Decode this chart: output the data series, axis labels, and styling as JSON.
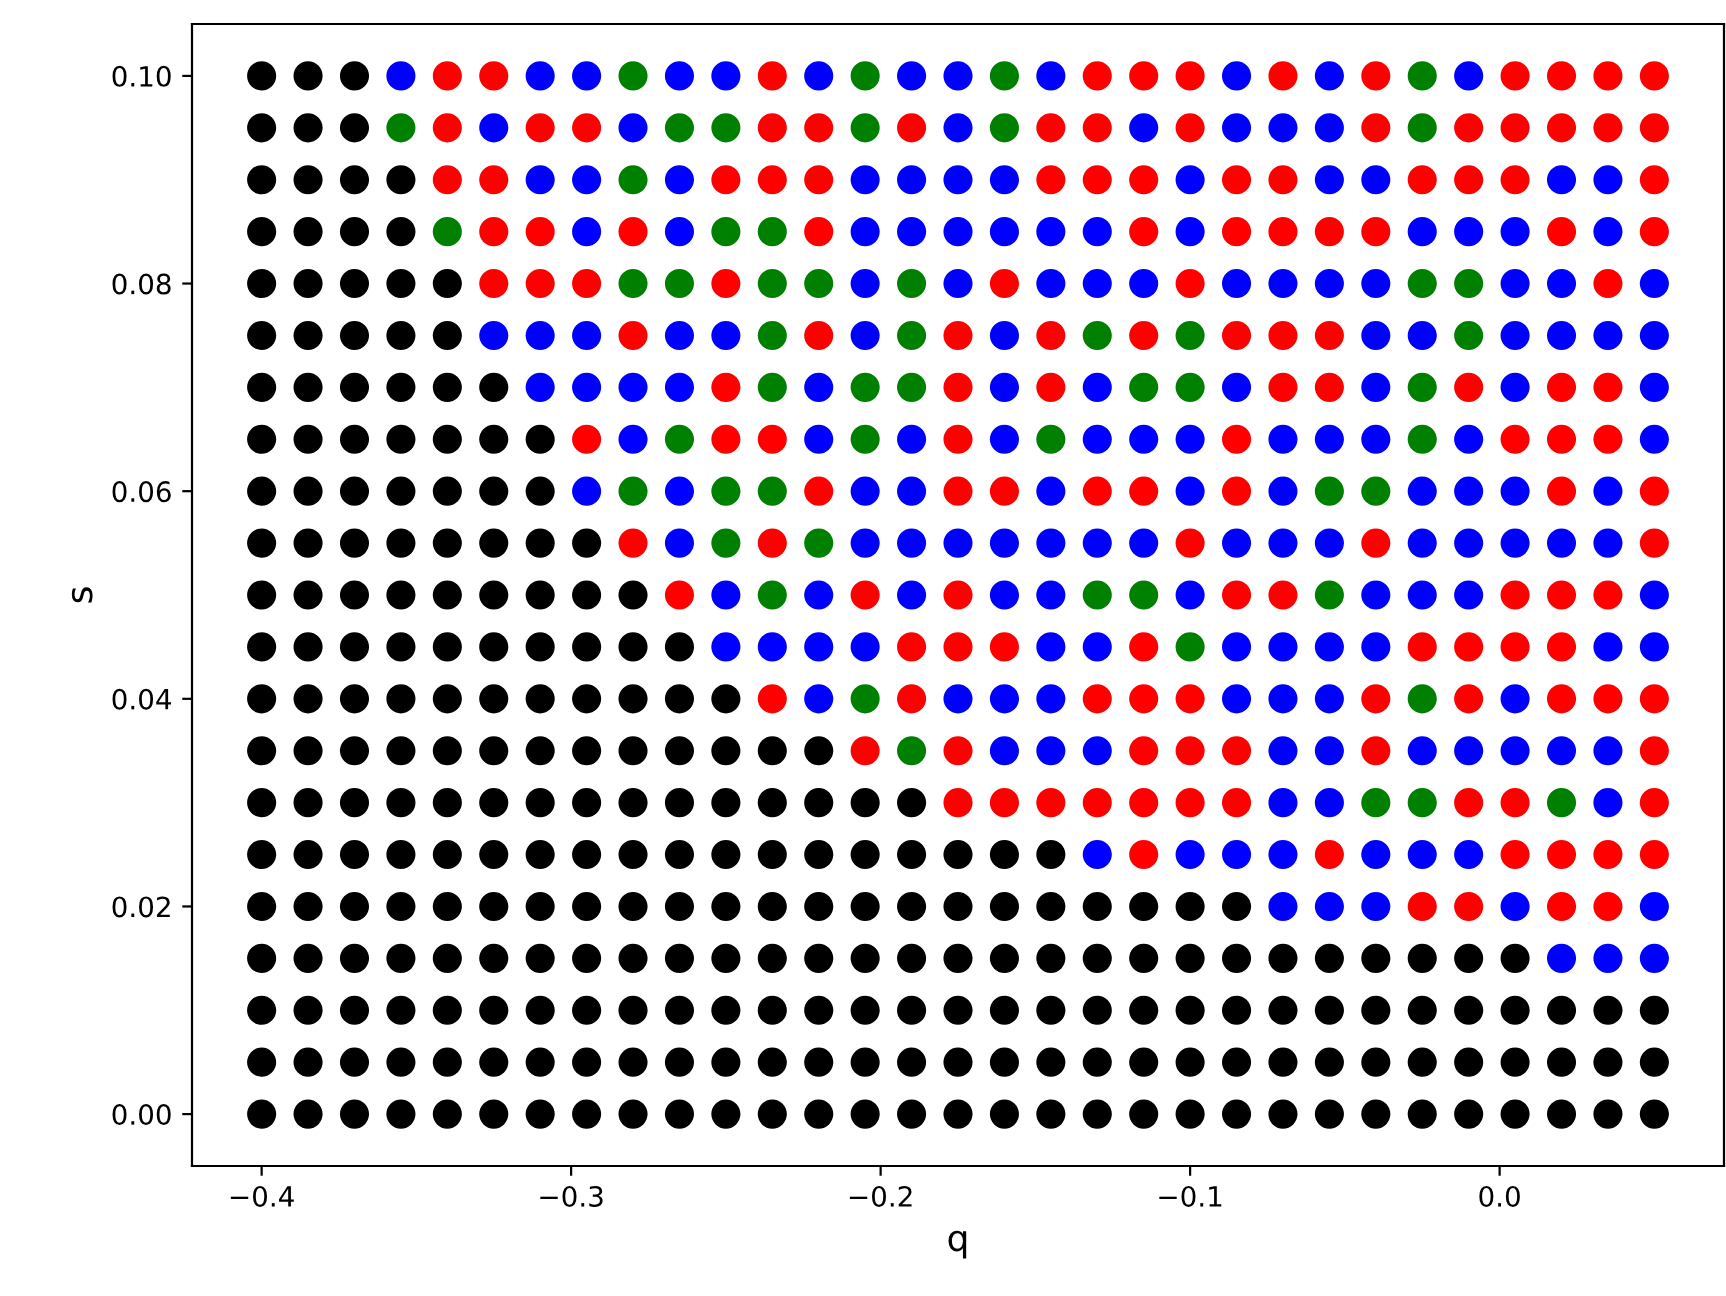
{
  "chart_data": {
    "type": "scatter",
    "xlabel": "q",
    "ylabel": "s",
    "marker": "circle",
    "xlim": [
      -0.4225,
      0.0725
    ],
    "ylim": [
      -0.005,
      0.105
    ],
    "xticks": [
      {
        "value": -0.4,
        "label": "−0.4"
      },
      {
        "value": -0.3,
        "label": "−0.3"
      },
      {
        "value": -0.2,
        "label": "−0.2"
      },
      {
        "value": -0.1,
        "label": "−0.1"
      },
      {
        "value": 0.0,
        "label": "0.0"
      }
    ],
    "yticks": [
      {
        "value": 0.0,
        "label": "0.00"
      },
      {
        "value": 0.02,
        "label": "0.02"
      },
      {
        "value": 0.04,
        "label": "0.04"
      },
      {
        "value": 0.06,
        "label": "0.06"
      },
      {
        "value": 0.08,
        "label": "0.08"
      },
      {
        "value": 0.1,
        "label": "0.10"
      }
    ],
    "x": [
      -0.4,
      -0.385,
      -0.37,
      -0.355,
      -0.34,
      -0.325,
      -0.31,
      -0.295,
      -0.28,
      -0.265,
      -0.25,
      -0.235,
      -0.22,
      -0.205,
      -0.19,
      -0.175,
      -0.16,
      -0.145,
      -0.13,
      -0.115,
      -0.1,
      -0.085,
      -0.07,
      -0.055,
      -0.04,
      -0.025,
      -0.01,
      0.005,
      0.02,
      0.035,
      0.05
    ],
    "series": [
      {
        "values": [
          0.1,
          0.1,
          0.1,
          0.1,
          0.1,
          0.1,
          0.1,
          0.1,
          0.1,
          0.1,
          0.1,
          0.1,
          0.1,
          0.1,
          0.1,
          0.1,
          0.1,
          0.1,
          0.1,
          0.1,
          0.1,
          0.1,
          0.1,
          0.1,
          0.1,
          0.1,
          0.1,
          0.1,
          0.1,
          0.1,
          0.1
        ],
        "colors": [
          "#000000",
          "#000000",
          "#000000",
          "#0000ff",
          "#ff0000",
          "#ff0000",
          "#0000ff",
          "#0000ff",
          "#008000",
          "#0000ff",
          "#0000ff",
          "#ff0000",
          "#0000ff",
          "#008000",
          "#0000ff",
          "#0000ff",
          "#008000",
          "#0000ff",
          "#ff0000",
          "#ff0000",
          "#ff0000",
          "#0000ff",
          "#ff0000",
          "#0000ff",
          "#ff0000",
          "#008000",
          "#0000ff",
          "#ff0000",
          "#ff0000",
          "#ff0000",
          "#ff0000"
        ]
      },
      {
        "values": [
          0.095,
          0.095,
          0.095,
          0.095,
          0.095,
          0.095,
          0.095,
          0.095,
          0.095,
          0.095,
          0.095,
          0.095,
          0.095,
          0.095,
          0.095,
          0.095,
          0.095,
          0.095,
          0.095,
          0.095,
          0.095,
          0.095,
          0.095,
          0.095,
          0.095,
          0.095,
          0.095,
          0.095,
          0.095,
          0.095,
          0.095
        ],
        "colors": [
          "#000000",
          "#000000",
          "#000000",
          "#008000",
          "#ff0000",
          "#0000ff",
          "#ff0000",
          "#ff0000",
          "#0000ff",
          "#008000",
          "#008000",
          "#ff0000",
          "#ff0000",
          "#008000",
          "#ff0000",
          "#0000ff",
          "#008000",
          "#ff0000",
          "#ff0000",
          "#0000ff",
          "#ff0000",
          "#0000ff",
          "#0000ff",
          "#0000ff",
          "#ff0000",
          "#008000",
          "#ff0000",
          "#ff0000",
          "#ff0000",
          "#ff0000",
          "#ff0000"
        ]
      },
      {
        "values": [
          0.09,
          0.09,
          0.09,
          0.09,
          0.09,
          0.09,
          0.09,
          0.09,
          0.09,
          0.09,
          0.09,
          0.09,
          0.09,
          0.09,
          0.09,
          0.09,
          0.09,
          0.09,
          0.09,
          0.09,
          0.09,
          0.09,
          0.09,
          0.09,
          0.09,
          0.09,
          0.09,
          0.09,
          0.09,
          0.09,
          0.09
        ],
        "colors": [
          "#000000",
          "#000000",
          "#000000",
          "#000000",
          "#ff0000",
          "#ff0000",
          "#0000ff",
          "#0000ff",
          "#008000",
          "#0000ff",
          "#ff0000",
          "#ff0000",
          "#ff0000",
          "#0000ff",
          "#0000ff",
          "#0000ff",
          "#0000ff",
          "#ff0000",
          "#ff0000",
          "#ff0000",
          "#0000ff",
          "#ff0000",
          "#ff0000",
          "#0000ff",
          "#0000ff",
          "#ff0000",
          "#ff0000",
          "#ff0000",
          "#0000ff",
          "#0000ff",
          "#ff0000"
        ]
      },
      {
        "values": [
          0.085,
          0.085,
          0.085,
          0.085,
          0.085,
          0.085,
          0.085,
          0.085,
          0.085,
          0.085,
          0.085,
          0.085,
          0.085,
          0.085,
          0.085,
          0.085,
          0.085,
          0.085,
          0.085,
          0.085,
          0.085,
          0.085,
          0.085,
          0.085,
          0.085,
          0.085,
          0.085,
          0.085,
          0.085,
          0.085,
          0.085
        ],
        "colors": [
          "#000000",
          "#000000",
          "#000000",
          "#000000",
          "#008000",
          "#ff0000",
          "#ff0000",
          "#0000ff",
          "#ff0000",
          "#0000ff",
          "#008000",
          "#008000",
          "#ff0000",
          "#0000ff",
          "#0000ff",
          "#0000ff",
          "#0000ff",
          "#0000ff",
          "#0000ff",
          "#ff0000",
          "#0000ff",
          "#ff0000",
          "#ff0000",
          "#ff0000",
          "#ff0000",
          "#0000ff",
          "#0000ff",
          "#0000ff",
          "#ff0000",
          "#0000ff",
          "#ff0000"
        ]
      },
      {
        "values": [
          0.08,
          0.08,
          0.08,
          0.08,
          0.08,
          0.08,
          0.08,
          0.08,
          0.08,
          0.08,
          0.08,
          0.08,
          0.08,
          0.08,
          0.08,
          0.08,
          0.08,
          0.08,
          0.08,
          0.08,
          0.08,
          0.08,
          0.08,
          0.08,
          0.08,
          0.08,
          0.08,
          0.08,
          0.08,
          0.08,
          0.08
        ],
        "colors": [
          "#000000",
          "#000000",
          "#000000",
          "#000000",
          "#000000",
          "#ff0000",
          "#ff0000",
          "#ff0000",
          "#008000",
          "#008000",
          "#ff0000",
          "#008000",
          "#008000",
          "#0000ff",
          "#008000",
          "#0000ff",
          "#ff0000",
          "#0000ff",
          "#0000ff",
          "#0000ff",
          "#ff0000",
          "#0000ff",
          "#0000ff",
          "#0000ff",
          "#0000ff",
          "#008000",
          "#008000",
          "#0000ff",
          "#0000ff",
          "#ff0000",
          "#0000ff"
        ]
      },
      {
        "values": [
          0.075,
          0.075,
          0.075,
          0.075,
          0.075,
          0.075,
          0.075,
          0.075,
          0.075,
          0.075,
          0.075,
          0.075,
          0.075,
          0.075,
          0.075,
          0.075,
          0.075,
          0.075,
          0.075,
          0.075,
          0.075,
          0.075,
          0.075,
          0.075,
          0.075,
          0.075,
          0.075,
          0.075,
          0.075,
          0.075,
          0.075
        ],
        "colors": [
          "#000000",
          "#000000",
          "#000000",
          "#000000",
          "#000000",
          "#0000ff",
          "#0000ff",
          "#0000ff",
          "#ff0000",
          "#0000ff",
          "#0000ff",
          "#008000",
          "#ff0000",
          "#0000ff",
          "#008000",
          "#ff0000",
          "#0000ff",
          "#ff0000",
          "#008000",
          "#ff0000",
          "#008000",
          "#ff0000",
          "#ff0000",
          "#ff0000",
          "#0000ff",
          "#0000ff",
          "#008000",
          "#0000ff",
          "#0000ff",
          "#0000ff",
          "#0000ff"
        ]
      },
      {
        "values": [
          0.07,
          0.07,
          0.07,
          0.07,
          0.07,
          0.07,
          0.07,
          0.07,
          0.07,
          0.07,
          0.07,
          0.07,
          0.07,
          0.07,
          0.07,
          0.07,
          0.07,
          0.07,
          0.07,
          0.07,
          0.07,
          0.07,
          0.07,
          0.07,
          0.07,
          0.07,
          0.07,
          0.07,
          0.07,
          0.07,
          0.07
        ],
        "colors": [
          "#000000",
          "#000000",
          "#000000",
          "#000000",
          "#000000",
          "#000000",
          "#0000ff",
          "#0000ff",
          "#0000ff",
          "#0000ff",
          "#ff0000",
          "#008000",
          "#0000ff",
          "#008000",
          "#008000",
          "#ff0000",
          "#0000ff",
          "#ff0000",
          "#0000ff",
          "#008000",
          "#008000",
          "#0000ff",
          "#ff0000",
          "#ff0000",
          "#0000ff",
          "#008000",
          "#ff0000",
          "#0000ff",
          "#ff0000",
          "#ff0000",
          "#0000ff"
        ]
      },
      {
        "values": [
          0.065,
          0.065,
          0.065,
          0.065,
          0.065,
          0.065,
          0.065,
          0.065,
          0.065,
          0.065,
          0.065,
          0.065,
          0.065,
          0.065,
          0.065,
          0.065,
          0.065,
          0.065,
          0.065,
          0.065,
          0.065,
          0.065,
          0.065,
          0.065,
          0.065,
          0.065,
          0.065,
          0.065,
          0.065,
          0.065,
          0.065
        ],
        "colors": [
          "#000000",
          "#000000",
          "#000000",
          "#000000",
          "#000000",
          "#000000",
          "#000000",
          "#ff0000",
          "#0000ff",
          "#008000",
          "#ff0000",
          "#ff0000",
          "#0000ff",
          "#008000",
          "#0000ff",
          "#ff0000",
          "#0000ff",
          "#008000",
          "#0000ff",
          "#0000ff",
          "#0000ff",
          "#ff0000",
          "#0000ff",
          "#0000ff",
          "#0000ff",
          "#008000",
          "#0000ff",
          "#ff0000",
          "#ff0000",
          "#ff0000",
          "#0000ff"
        ]
      },
      {
        "values": [
          0.06,
          0.06,
          0.06,
          0.06,
          0.06,
          0.06,
          0.06,
          0.06,
          0.06,
          0.06,
          0.06,
          0.06,
          0.06,
          0.06,
          0.06,
          0.06,
          0.06,
          0.06,
          0.06,
          0.06,
          0.06,
          0.06,
          0.06,
          0.06,
          0.06,
          0.06,
          0.06,
          0.06,
          0.06,
          0.06,
          0.06
        ],
        "colors": [
          "#000000",
          "#000000",
          "#000000",
          "#000000",
          "#000000",
          "#000000",
          "#000000",
          "#0000ff",
          "#008000",
          "#0000ff",
          "#008000",
          "#008000",
          "#ff0000",
          "#0000ff",
          "#0000ff",
          "#ff0000",
          "#ff0000",
          "#0000ff",
          "#ff0000",
          "#ff0000",
          "#0000ff",
          "#ff0000",
          "#0000ff",
          "#008000",
          "#008000",
          "#0000ff",
          "#0000ff",
          "#0000ff",
          "#ff0000",
          "#0000ff",
          "#ff0000"
        ]
      },
      {
        "values": [
          0.055,
          0.055,
          0.055,
          0.055,
          0.055,
          0.055,
          0.055,
          0.055,
          0.055,
          0.055,
          0.055,
          0.055,
          0.055,
          0.055,
          0.055,
          0.055,
          0.055,
          0.055,
          0.055,
          0.055,
          0.055,
          0.055,
          0.055,
          0.055,
          0.055,
          0.055,
          0.055,
          0.055,
          0.055,
          0.055,
          0.055
        ],
        "colors": [
          "#000000",
          "#000000",
          "#000000",
          "#000000",
          "#000000",
          "#000000",
          "#000000",
          "#000000",
          "#ff0000",
          "#0000ff",
          "#008000",
          "#ff0000",
          "#008000",
          "#0000ff",
          "#0000ff",
          "#0000ff",
          "#0000ff",
          "#0000ff",
          "#0000ff",
          "#0000ff",
          "#ff0000",
          "#0000ff",
          "#0000ff",
          "#0000ff",
          "#ff0000",
          "#0000ff",
          "#0000ff",
          "#0000ff",
          "#0000ff",
          "#0000ff",
          "#ff0000"
        ]
      },
      {
        "values": [
          0.05,
          0.05,
          0.05,
          0.05,
          0.05,
          0.05,
          0.05,
          0.05,
          0.05,
          0.05,
          0.05,
          0.05,
          0.05,
          0.05,
          0.05,
          0.05,
          0.05,
          0.05,
          0.05,
          0.05,
          0.05,
          0.05,
          0.05,
          0.05,
          0.05,
          0.05,
          0.05,
          0.05,
          0.05,
          0.05,
          0.05
        ],
        "colors": [
          "#000000",
          "#000000",
          "#000000",
          "#000000",
          "#000000",
          "#000000",
          "#000000",
          "#000000",
          "#000000",
          "#ff0000",
          "#0000ff",
          "#008000",
          "#0000ff",
          "#ff0000",
          "#0000ff",
          "#ff0000",
          "#0000ff",
          "#0000ff",
          "#008000",
          "#008000",
          "#0000ff",
          "#ff0000",
          "#ff0000",
          "#008000",
          "#0000ff",
          "#0000ff",
          "#0000ff",
          "#ff0000",
          "#ff0000",
          "#ff0000",
          "#0000ff"
        ]
      },
      {
        "values": [
          0.045,
          0.045,
          0.045,
          0.045,
          0.045,
          0.045,
          0.045,
          0.045,
          0.045,
          0.045,
          0.045,
          0.045,
          0.045,
          0.045,
          0.045,
          0.045,
          0.045,
          0.045,
          0.045,
          0.045,
          0.045,
          0.045,
          0.045,
          0.045,
          0.045,
          0.045,
          0.045,
          0.045,
          0.045,
          0.045,
          0.045
        ],
        "colors": [
          "#000000",
          "#000000",
          "#000000",
          "#000000",
          "#000000",
          "#000000",
          "#000000",
          "#000000",
          "#000000",
          "#000000",
          "#0000ff",
          "#0000ff",
          "#0000ff",
          "#0000ff",
          "#ff0000",
          "#ff0000",
          "#ff0000",
          "#0000ff",
          "#0000ff",
          "#ff0000",
          "#008000",
          "#0000ff",
          "#0000ff",
          "#0000ff",
          "#0000ff",
          "#ff0000",
          "#ff0000",
          "#ff0000",
          "#ff0000",
          "#0000ff",
          "#0000ff"
        ]
      },
      {
        "values": [
          0.04,
          0.04,
          0.04,
          0.04,
          0.04,
          0.04,
          0.04,
          0.04,
          0.04,
          0.04,
          0.04,
          0.04,
          0.04,
          0.04,
          0.04,
          0.04,
          0.04,
          0.04,
          0.04,
          0.04,
          0.04,
          0.04,
          0.04,
          0.04,
          0.04,
          0.04,
          0.04,
          0.04,
          0.04,
          0.04,
          0.04
        ],
        "colors": [
          "#000000",
          "#000000",
          "#000000",
          "#000000",
          "#000000",
          "#000000",
          "#000000",
          "#000000",
          "#000000",
          "#000000",
          "#000000",
          "#ff0000",
          "#0000ff",
          "#008000",
          "#ff0000",
          "#0000ff",
          "#0000ff",
          "#0000ff",
          "#ff0000",
          "#ff0000",
          "#ff0000",
          "#0000ff",
          "#0000ff",
          "#0000ff",
          "#ff0000",
          "#008000",
          "#ff0000",
          "#0000ff",
          "#ff0000",
          "#ff0000",
          "#ff0000"
        ]
      },
      {
        "values": [
          0.035,
          0.035,
          0.035,
          0.035,
          0.035,
          0.035,
          0.035,
          0.035,
          0.035,
          0.035,
          0.035,
          0.035,
          0.035,
          0.035,
          0.035,
          0.035,
          0.035,
          0.035,
          0.035,
          0.035,
          0.035,
          0.035,
          0.035,
          0.035,
          0.035,
          0.035,
          0.035,
          0.035,
          0.035,
          0.035,
          0.035
        ],
        "colors": [
          "#000000",
          "#000000",
          "#000000",
          "#000000",
          "#000000",
          "#000000",
          "#000000",
          "#000000",
          "#000000",
          "#000000",
          "#000000",
          "#000000",
          "#000000",
          "#ff0000",
          "#008000",
          "#ff0000",
          "#0000ff",
          "#0000ff",
          "#0000ff",
          "#ff0000",
          "#ff0000",
          "#ff0000",
          "#0000ff",
          "#0000ff",
          "#ff0000",
          "#0000ff",
          "#0000ff",
          "#0000ff",
          "#0000ff",
          "#0000ff",
          "#ff0000"
        ]
      },
      {
        "values": [
          0.03,
          0.03,
          0.03,
          0.03,
          0.03,
          0.03,
          0.03,
          0.03,
          0.03,
          0.03,
          0.03,
          0.03,
          0.03,
          0.03,
          0.03,
          0.03,
          0.03,
          0.03,
          0.03,
          0.03,
          0.03,
          0.03,
          0.03,
          0.03,
          0.03,
          0.03,
          0.03,
          0.03,
          0.03,
          0.03,
          0.03
        ],
        "colors": [
          "#000000",
          "#000000",
          "#000000",
          "#000000",
          "#000000",
          "#000000",
          "#000000",
          "#000000",
          "#000000",
          "#000000",
          "#000000",
          "#000000",
          "#000000",
          "#000000",
          "#000000",
          "#ff0000",
          "#ff0000",
          "#ff0000",
          "#ff0000",
          "#ff0000",
          "#ff0000",
          "#ff0000",
          "#0000ff",
          "#0000ff",
          "#008000",
          "#008000",
          "#ff0000",
          "#ff0000",
          "#008000",
          "#0000ff",
          "#ff0000"
        ]
      },
      {
        "values": [
          0.025,
          0.025,
          0.025,
          0.025,
          0.025,
          0.025,
          0.025,
          0.025,
          0.025,
          0.025,
          0.025,
          0.025,
          0.025,
          0.025,
          0.025,
          0.025,
          0.025,
          0.025,
          0.025,
          0.025,
          0.025,
          0.025,
          0.025,
          0.025,
          0.025,
          0.025,
          0.025,
          0.025,
          0.025,
          0.025,
          0.025
        ],
        "colors": [
          "#000000",
          "#000000",
          "#000000",
          "#000000",
          "#000000",
          "#000000",
          "#000000",
          "#000000",
          "#000000",
          "#000000",
          "#000000",
          "#000000",
          "#000000",
          "#000000",
          "#000000",
          "#000000",
          "#000000",
          "#000000",
          "#0000ff",
          "#ff0000",
          "#0000ff",
          "#0000ff",
          "#0000ff",
          "#ff0000",
          "#0000ff",
          "#0000ff",
          "#0000ff",
          "#ff0000",
          "#ff0000",
          "#ff0000",
          "#ff0000"
        ]
      },
      {
        "values": [
          0.02,
          0.02,
          0.02,
          0.02,
          0.02,
          0.02,
          0.02,
          0.02,
          0.02,
          0.02,
          0.02,
          0.02,
          0.02,
          0.02,
          0.02,
          0.02,
          0.02,
          0.02,
          0.02,
          0.02,
          0.02,
          0.02,
          0.02,
          0.02,
          0.02,
          0.02,
          0.02,
          0.02,
          0.02,
          0.02,
          0.02
        ],
        "colors": [
          "#000000",
          "#000000",
          "#000000",
          "#000000",
          "#000000",
          "#000000",
          "#000000",
          "#000000",
          "#000000",
          "#000000",
          "#000000",
          "#000000",
          "#000000",
          "#000000",
          "#000000",
          "#000000",
          "#000000",
          "#000000",
          "#000000",
          "#000000",
          "#000000",
          "#000000",
          "#0000ff",
          "#0000ff",
          "#0000ff",
          "#ff0000",
          "#ff0000",
          "#0000ff",
          "#ff0000",
          "#ff0000",
          "#0000ff"
        ]
      },
      {
        "values": [
          0.015,
          0.015,
          0.015,
          0.015,
          0.015,
          0.015,
          0.015,
          0.015,
          0.015,
          0.015,
          0.015,
          0.015,
          0.015,
          0.015,
          0.015,
          0.015,
          0.015,
          0.015,
          0.015,
          0.015,
          0.015,
          0.015,
          0.015,
          0.015,
          0.015,
          0.015,
          0.015,
          0.015,
          0.015,
          0.015,
          0.015
        ],
        "colors": [
          "#000000",
          "#000000",
          "#000000",
          "#000000",
          "#000000",
          "#000000",
          "#000000",
          "#000000",
          "#000000",
          "#000000",
          "#000000",
          "#000000",
          "#000000",
          "#000000",
          "#000000",
          "#000000",
          "#000000",
          "#000000",
          "#000000",
          "#000000",
          "#000000",
          "#000000",
          "#000000",
          "#000000",
          "#000000",
          "#000000",
          "#000000",
          "#000000",
          "#0000ff",
          "#0000ff",
          "#0000ff"
        ]
      },
      {
        "values": [
          0.01,
          0.01,
          0.01,
          0.01,
          0.01,
          0.01,
          0.01,
          0.01,
          0.01,
          0.01,
          0.01,
          0.01,
          0.01,
          0.01,
          0.01,
          0.01,
          0.01,
          0.01,
          0.01,
          0.01,
          0.01,
          0.01,
          0.01,
          0.01,
          0.01,
          0.01,
          0.01,
          0.01,
          0.01,
          0.01,
          0.01
        ],
        "color": "#000000"
      },
      {
        "values": [
          0.005,
          0.005,
          0.005,
          0.005,
          0.005,
          0.005,
          0.005,
          0.005,
          0.005,
          0.005,
          0.005,
          0.005,
          0.005,
          0.005,
          0.005,
          0.005,
          0.005,
          0.005,
          0.005,
          0.005,
          0.005,
          0.005,
          0.005,
          0.005,
          0.005,
          0.005,
          0.005,
          0.005,
          0.005,
          0.005,
          0.005
        ],
        "color": "#000000"
      },
      {
        "values": [
          0.0,
          0.0,
          0.0,
          0.0,
          0.0,
          0.0,
          0.0,
          0.0,
          0.0,
          0.0,
          0.0,
          0.0,
          0.0,
          0.0,
          0.0,
          0.0,
          0.0,
          0.0,
          0.0,
          0.0,
          0.0,
          0.0,
          0.0,
          0.0,
          0.0,
          0.0,
          0.0,
          0.0,
          0.0,
          0.0,
          0.0
        ],
        "color": "#000000"
      }
    ]
  }
}
